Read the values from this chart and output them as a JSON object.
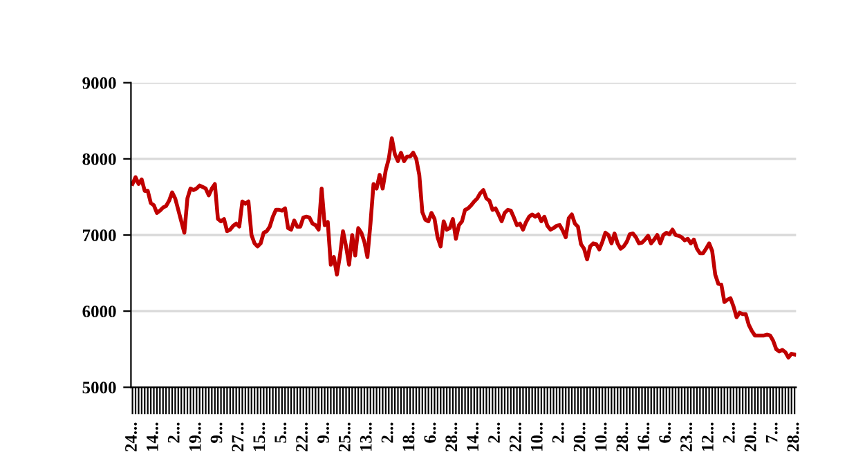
{
  "chart_data": {
    "type": "line",
    "grid": "y",
    "ylim": [
      5000,
      9000
    ],
    "yticks": [
      5000,
      6000,
      7000,
      8000,
      9000
    ],
    "categories": [
      "24...",
      null,
      null,
      null,
      null,
      null,
      null,
      "14...",
      null,
      null,
      null,
      null,
      null,
      null,
      "2...",
      null,
      null,
      null,
      null,
      null,
      null,
      "19...",
      null,
      null,
      null,
      null,
      null,
      null,
      "9...",
      null,
      null,
      null,
      null,
      null,
      null,
      "27...",
      null,
      null,
      null,
      null,
      null,
      null,
      "15...",
      null,
      null,
      null,
      null,
      null,
      null,
      "5...",
      null,
      null,
      null,
      null,
      null,
      null,
      "22...",
      null,
      null,
      null,
      null,
      null,
      null,
      "9...",
      null,
      null,
      null,
      null,
      null,
      null,
      "25...",
      null,
      null,
      null,
      null,
      null,
      null,
      "13...",
      null,
      null,
      null,
      null,
      null,
      null,
      "2...",
      null,
      null,
      null,
      null,
      null,
      null,
      "18...",
      null,
      null,
      null,
      null,
      null,
      null,
      "6...",
      null,
      null,
      null,
      null,
      null,
      null,
      "28...",
      null,
      null,
      null,
      null,
      null,
      null,
      "14...",
      null,
      null,
      null,
      null,
      null,
      null,
      "2...",
      null,
      null,
      null,
      null,
      null,
      null,
      "22...",
      null,
      null,
      null,
      null,
      null,
      null,
      "10...",
      null,
      null,
      null,
      null,
      null,
      null,
      "2...",
      null,
      null,
      null,
      null,
      null,
      null,
      "20...",
      null,
      null,
      null,
      null,
      null,
      null,
      "10...",
      null,
      null,
      null,
      null,
      null,
      null,
      "28...",
      null,
      null,
      null,
      null,
      null,
      null,
      "16...",
      null,
      null,
      null,
      null,
      null,
      null,
      "6...",
      null,
      null,
      null,
      null,
      null,
      null,
      "23...",
      null,
      null,
      null,
      null,
      null,
      null,
      "12...",
      null,
      null,
      null,
      null,
      null,
      null,
      "2...",
      null,
      null,
      null,
      null,
      null,
      null,
      "20...",
      null,
      null,
      null,
      null,
      null,
      null,
      "7...",
      null,
      null,
      null,
      null,
      null,
      null,
      "28..."
    ],
    "series": [
      {
        "color": "#c00000",
        "values": [
          7670,
          7760,
          7670,
          7730,
          7580,
          7580,
          7420,
          7390,
          7290,
          7320,
          7360,
          7380,
          7450,
          7560,
          7480,
          7330,
          7180,
          7030,
          7480,
          7610,
          7590,
          7610,
          7650,
          7630,
          7610,
          7520,
          7610,
          7670,
          7210,
          7180,
          7210,
          7050,
          7070,
          7120,
          7150,
          7110,
          7440,
          7410,
          7440,
          7000,
          6890,
          6850,
          6890,
          7030,
          7050,
          7110,
          7240,
          7330,
          7330,
          7320,
          7350,
          7090,
          7070,
          7190,
          7110,
          7110,
          7230,
          7240,
          7230,
          7150,
          7130,
          7070,
          7610,
          7130,
          7170,
          6610,
          6710,
          6480,
          6730,
          7050,
          6850,
          6610,
          7000,
          6730,
          7090,
          7030,
          6910,
          6710,
          7150,
          7670,
          7610,
          7790,
          7610,
          7850,
          8000,
          8270,
          8060,
          7970,
          8080,
          7970,
          8030,
          8030,
          8080,
          8000,
          7790,
          7300,
          7200,
          7180,
          7290,
          7210,
          6970,
          6850,
          7180,
          7070,
          7090,
          7210,
          6950,
          7130,
          7180,
          7330,
          7350,
          7390,
          7440,
          7480,
          7550,
          7590,
          7480,
          7450,
          7330,
          7350,
          7270,
          7180,
          7290,
          7330,
          7320,
          7230,
          7130,
          7150,
          7070,
          7170,
          7240,
          7270,
          7240,
          7270,
          7180,
          7240,
          7120,
          7070,
          7090,
          7120,
          7130,
          7060,
          6970,
          7220,
          7270,
          7150,
          7110,
          6880,
          6820,
          6680,
          6850,
          6890,
          6880,
          6810,
          6910,
          7030,
          7000,
          6890,
          7020,
          6890,
          6820,
          6850,
          6910,
          7010,
          7020,
          6970,
          6890,
          6900,
          6940,
          6990,
          6890,
          6940,
          7000,
          6890,
          7000,
          7030,
          7010,
          7070,
          7000,
          6990,
          6970,
          6930,
          6950,
          6890,
          6940,
          6820,
          6760,
          6760,
          6820,
          6890,
          6790,
          6480,
          6360,
          6350,
          6120,
          6150,
          6170,
          6060,
          5920,
          5980,
          5960,
          5960,
          5820,
          5740,
          5680,
          5680,
          5680,
          5680,
          5690,
          5680,
          5610,
          5500,
          5470,
          5490,
          5460,
          5390,
          5440,
          5430
        ]
      }
    ]
  }
}
